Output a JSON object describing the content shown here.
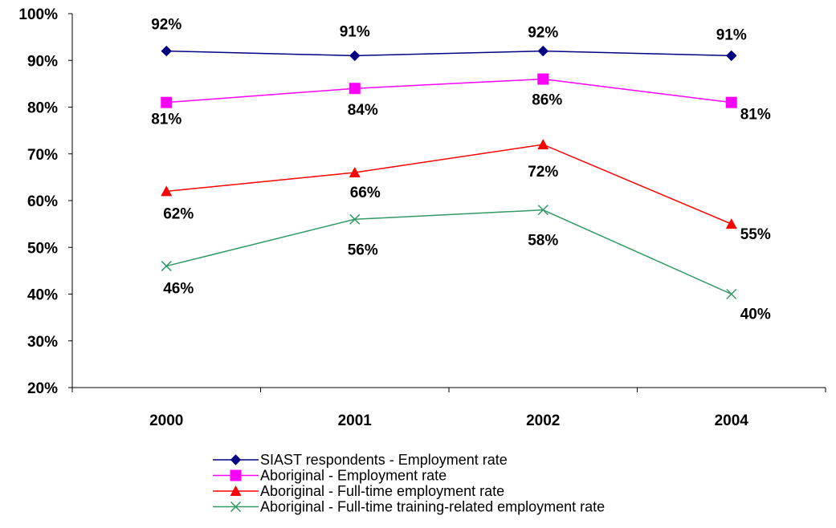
{
  "chart_data": {
    "type": "line",
    "categories": [
      "2000",
      "2001",
      "2002",
      "2004"
    ],
    "ylim": [
      20,
      100
    ],
    "ytick_step": 10,
    "y_tick_format": "percent",
    "grid": false,
    "legend_position": "bottom",
    "series": [
      {
        "name": "SIAST respondents - Employment rate",
        "values": [
          92,
          91,
          92,
          91
        ],
        "labels": [
          "92%",
          "91%",
          "92%",
          "91%"
        ],
        "color": "#000080",
        "marker": "diamond"
      },
      {
        "name": "Aboriginal - Employment rate",
        "values": [
          81,
          84,
          86,
          81
        ],
        "labels": [
          "81%",
          "84%",
          "86%",
          "81%"
        ],
        "color": "#FF00FF",
        "marker": "square"
      },
      {
        "name": "Aboriginal - Full-time employment rate",
        "values": [
          62,
          66,
          72,
          55
        ],
        "labels": [
          "62%",
          "66%",
          "72%",
          "55%"
        ],
        "color": "#FF0000",
        "marker": "triangle"
      },
      {
        "name": "Aboriginal - Full-time training-related employment rate",
        "values": [
          46,
          56,
          58,
          40
        ],
        "labels": [
          "46%",
          "56%",
          "58%",
          "40%"
        ],
        "color": "#339966",
        "marker": "x"
      }
    ]
  }
}
